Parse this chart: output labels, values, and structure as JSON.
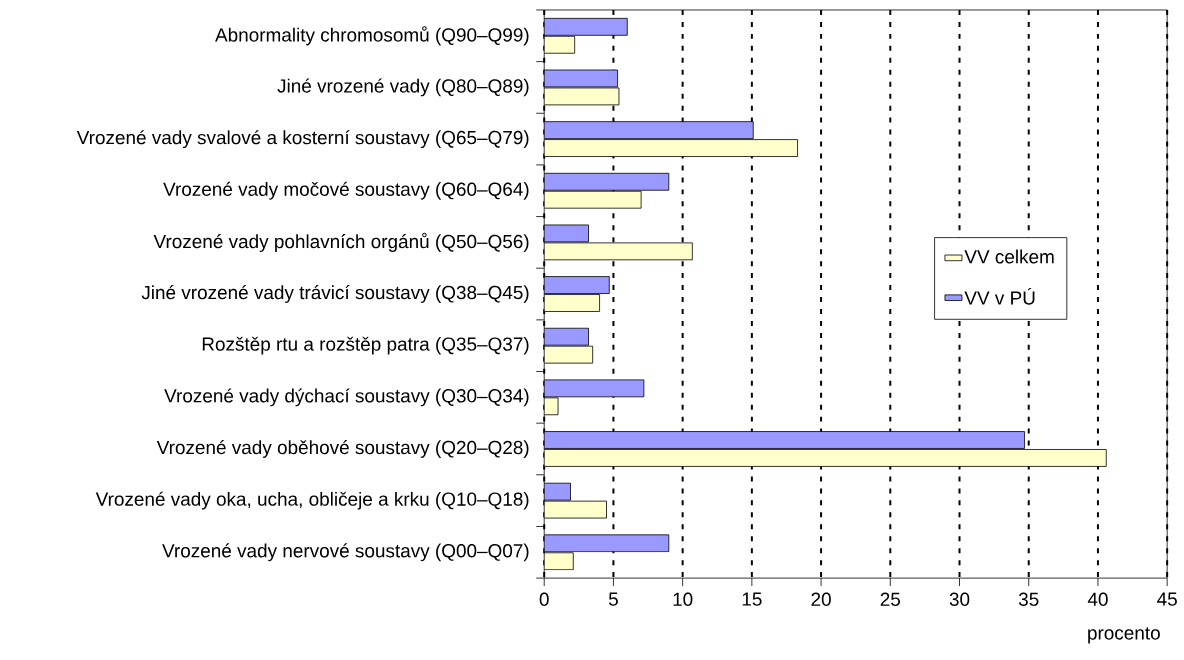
{
  "chart_data": {
    "type": "bar",
    "orientation": "horizontal",
    "xlabel": "procento",
    "categories": [
      "Abnormality chromosomů (Q90–Q99)",
      "Jiné vrozené vady (Q80–Q89)",
      "Vrozené vady svalové a kosterní soustavy (Q65–Q79)",
      "Vrozené vady močové soustavy (Q60–Q64)",
      "Vrozené vady pohlavních orgánů (Q50–Q56)",
      "Jiné vrozené vady trávicí soustavy (Q38–Q45)",
      "Rozštěp rtu a rozštěp patra (Q35–Q37)",
      "Vrozené vady dýchací soustavy (Q30–Q34)",
      "Vrozené vady oběhové soustavy (Q20–Q28)",
      "Vrozené vady oka, ucha, obličeje a krku (Q10–Q18)",
      "Vrozené vady nervové soustavy (Q00–Q07)"
    ],
    "series": [
      {
        "name": "VV celkem",
        "color": "#ffffcc",
        "values": [
          2.2,
          5.4,
          18.3,
          7.0,
          10.7,
          4.0,
          3.5,
          1.0,
          40.6,
          4.5,
          2.1
        ]
      },
      {
        "name": "VV v PÚ",
        "color": "#9999ff",
        "values": [
          6.0,
          5.3,
          15.1,
          9.0,
          3.2,
          4.7,
          3.2,
          7.2,
          34.7,
          1.9,
          9.0
        ]
      }
    ],
    "xlim": [
      0,
      45
    ],
    "xticks": [
      0,
      5,
      10,
      15,
      20,
      25,
      30,
      35,
      40,
      45
    ],
    "grid": "x",
    "legend": "right"
  }
}
